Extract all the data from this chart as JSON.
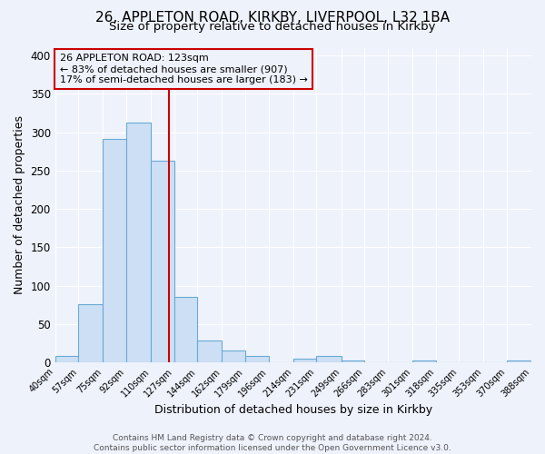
{
  "title1": "26, APPLETON ROAD, KIRKBY, LIVERPOOL, L32 1BA",
  "title2": "Size of property relative to detached houses in Kirkby",
  "xlabel": "Distribution of detached houses by size in Kirkby",
  "ylabel": "Number of detached properties",
  "bin_edges": [
    40,
    57,
    75,
    92,
    110,
    127,
    144,
    162,
    179,
    196,
    214,
    231,
    249,
    266,
    283,
    301,
    318,
    335,
    353,
    370,
    388
  ],
  "bin_counts": [
    8,
    76,
    291,
    313,
    263,
    85,
    28,
    16,
    8,
    0,
    5,
    8,
    3,
    0,
    0,
    3,
    0,
    0,
    0,
    2
  ],
  "bar_facecolor": "#ccdff5",
  "bar_edgecolor": "#6aaad4",
  "vline_x": 123,
  "vline_color": "#cc0000",
  "annotation_title": "26 APPLETON ROAD: 123sqm",
  "annotation_line1": "← 83% of detached houses are smaller (907)",
  "annotation_line2": "17% of semi-detached houses are larger (183) →",
  "annotation_box_edgecolor": "#cc0000",
  "ylim_max": 410,
  "yticks": [
    0,
    50,
    100,
    150,
    200,
    250,
    300,
    350,
    400
  ],
  "tick_labels": [
    "40sqm",
    "57sqm",
    "75sqm",
    "92sqm",
    "110sqm",
    "127sqm",
    "144sqm",
    "162sqm",
    "179sqm",
    "196sqm",
    "214sqm",
    "231sqm",
    "249sqm",
    "266sqm",
    "283sqm",
    "301sqm",
    "318sqm",
    "335sqm",
    "353sqm",
    "370sqm",
    "388sqm"
  ],
  "footer1": "Contains HM Land Registry data © Crown copyright and database right 2024.",
  "footer2": "Contains public sector information licensed under the Open Government Licence v3.0.",
  "background_color": "#eef2fb",
  "grid_color": "#ffffff",
  "title1_fontsize": 11,
  "title2_fontsize": 9.5,
  "axis_label_fontsize": 9,
  "tick_fontsize": 7,
  "footer_fontsize": 6.5,
  "annot_fontsize": 8
}
